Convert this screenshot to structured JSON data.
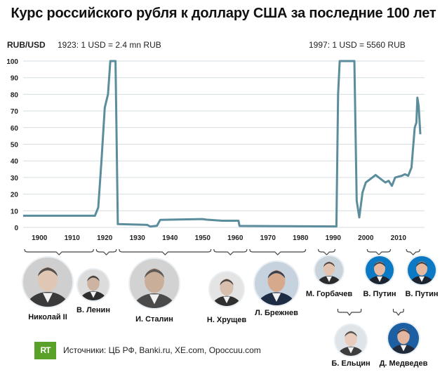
{
  "title": "Курс российского рубля к доллару США за последние 100 лет",
  "source_logo": "RT",
  "source": "Источники: ЦБ РФ, Banki.ru, XE.com, Opoccuu.com",
  "chart_data": {
    "type": "line",
    "ylabel": "RUB/USD",
    "xlim": [
      1895,
      2018
    ],
    "ylim": [
      0,
      100
    ],
    "yticks": [
      0,
      10,
      20,
      30,
      40,
      50,
      60,
      70,
      80,
      90,
      100
    ],
    "xticks": [
      1900,
      1910,
      1920,
      1930,
      1940,
      1950,
      1960,
      1970,
      1980,
      1990,
      2000,
      2010
    ],
    "annotations": [
      {
        "text": "1923: 1 USD = 2.4 mn RUB",
        "x": 1923
      },
      {
        "text": "1997: 1 USD = 5560 RUB",
        "x": 1997
      }
    ],
    "series": [
      {
        "color": "#5b8d9d",
        "points": [
          [
            1895,
            7
          ],
          [
            1917,
            7
          ],
          [
            1918,
            12
          ],
          [
            1919,
            40
          ],
          [
            1920,
            72
          ],
          [
            1921,
            80
          ],
          [
            1921.7,
            101
          ],
          [
            1923.3,
            101
          ],
          [
            1924,
            2
          ],
          [
            1933,
            1.5
          ],
          [
            1934,
            0.5
          ],
          [
            1936,
            1
          ],
          [
            1937,
            4.5
          ],
          [
            1950,
            5
          ],
          [
            1951,
            4.7
          ],
          [
            1956,
            4
          ],
          [
            1961,
            4
          ],
          [
            1961.3,
            0.9
          ],
          [
            1991,
            0.6
          ],
          [
            1991.5,
            80
          ],
          [
            1992,
            101
          ],
          [
            1996.5,
            101
          ],
          [
            1997.2,
            16
          ],
          [
            1998,
            6
          ],
          [
            1999,
            21
          ],
          [
            2000,
            27
          ],
          [
            2002,
            30
          ],
          [
            2003,
            31.5
          ],
          [
            2005,
            28.5
          ],
          [
            2006,
            27
          ],
          [
            2007,
            28
          ],
          [
            2008,
            25
          ],
          [
            2009,
            30
          ],
          [
            2011,
            31
          ],
          [
            2012,
            32
          ],
          [
            2013,
            31
          ],
          [
            2014,
            36
          ],
          [
            2015,
            60
          ],
          [
            2015.5,
            63
          ],
          [
            2015.8,
            78
          ],
          [
            2016.2,
            73
          ],
          [
            2016.7,
            56
          ]
        ]
      }
    ]
  },
  "leaders": [
    {
      "name": "Николай II",
      "start": 1895,
      "end": 1917
    },
    {
      "name": "В. Ленин",
      "start": 1917,
      "end": 1924
    },
    {
      "name": "И. Сталин",
      "start": 1924,
      "end": 1953
    },
    {
      "name": "Н. Хрущев",
      "start": 1953,
      "end": 1964
    },
    {
      "name": "Л. Брежнев",
      "start": 1964,
      "end": 1982
    },
    {
      "name": "М. Горбачев",
      "start": 1985,
      "end": 1991
    },
    {
      "name": "Б. Ельцин",
      "start": 1991,
      "end": 1999
    },
    {
      "name": "В. Путин",
      "start": 2000,
      "end": 2008
    },
    {
      "name": "Д. Медведев",
      "start": 2008,
      "end": 2012
    },
    {
      "name": "В. Путин",
      "start": 2012,
      "end": 2017
    }
  ]
}
